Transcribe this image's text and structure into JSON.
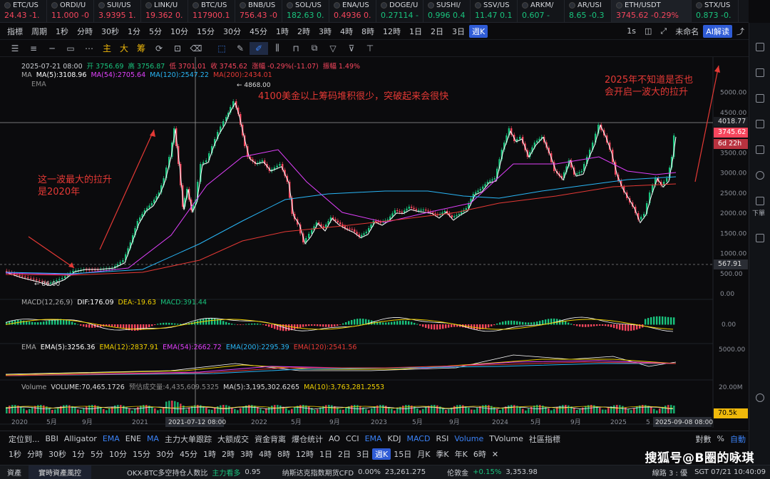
{
  "tickers": [
    {
      "name": "ETC/US",
      "value": "24.43 -1.",
      "dir": "dn"
    },
    {
      "name": "ORDI/U",
      "value": "11.000 -0",
      "dir": "dn"
    },
    {
      "name": "SUI/US",
      "value": "3.9395 1.",
      "dir": "dn"
    },
    {
      "name": "LINK/U",
      "value": "19.362 0.",
      "dir": "dn"
    },
    {
      "name": "BTC/US",
      "value": "117900.1",
      "dir": "dn"
    },
    {
      "name": "BNB/US",
      "value": "756.43 -0",
      "dir": "dn"
    },
    {
      "name": "SOL/US",
      "value": "182.63 0.",
      "dir": "up"
    },
    {
      "name": "ENA/US",
      "value": "0.4936 0.",
      "dir": "dn"
    },
    {
      "name": "DOGE/U",
      "value": "0.27114 -",
      "dir": "up"
    },
    {
      "name": "SUSHI/",
      "value": "0.996 0.4",
      "dir": "up"
    },
    {
      "name": "SSV/US",
      "value": "11.47 0.1",
      "dir": "up"
    },
    {
      "name": "ARKM/",
      "value": "0.607 -",
      "dir": "up"
    },
    {
      "name": "AR/USI",
      "value": "8.65 -0.3",
      "dir": "up"
    },
    {
      "name": "ETH/USDT",
      "value": "3745.62 -0.29%",
      "dir": "dn",
      "active": true
    },
    {
      "name": "STX/US",
      "value": "0.873 -0.",
      "dir": "up"
    }
  ],
  "toolbar1": [
    "指標",
    "周期",
    "1秒",
    "分時",
    "30秒",
    "1分",
    "5分",
    "10分",
    "15分",
    "30分",
    "45分",
    "1時",
    "2時",
    "3時",
    "4時",
    "8時",
    "12時",
    "1日",
    "2日",
    "3日",
    "週K"
  ],
  "toolbar1_selected": "週K",
  "toolbar1_right": {
    "sec": "1s",
    "user": "未命名",
    "ai": "AI解读"
  },
  "toolbar2_chars": [
    "主",
    "大",
    "筹"
  ],
  "info": {
    "ohlc_date": "2025-07-21 08:00",
    "open": "开 3756.69",
    "high": "高 3756.87",
    "low": "低 3701.01",
    "close": "收 3745.62",
    "change": "涨幅 -0.29%(-11.07)",
    "amp": "振幅 1.49%"
  },
  "ma_legend": {
    "label": "MA",
    "ma5": "MA(5):3108.96",
    "ma54": "MA(54):2705.64",
    "ma120": "MA(120):2547.22",
    "ma200": "MA(200):2434.01"
  },
  "ema_label": "EMA",
  "annotations": {
    "a1": "4100美金以上筹码堆积很少，突破起来会很快",
    "a2": "2025年不知道是否也会开启一波大的拉升",
    "a3": "这一波最大的拉升是2020年"
  },
  "price_labels": {
    "high": "4868.00",
    "low": "86.00",
    "crosshair": "4018.77",
    "last": "3745.62",
    "countdown": "6d 22h",
    "cross_y": "567.91"
  },
  "y_ticks": [
    "5000.00",
    "4500.00",
    "4000.00",
    "3500.00",
    "3000.00",
    "2500.00",
    "2000.00",
    "1500.00",
    "1000.00",
    "500.00",
    "0.00"
  ],
  "x_ticks": [
    "2020",
    "5月",
    "9月",
    "2021",
    "5月",
    "9月",
    "2022",
    "5月",
    "9月",
    "2023",
    "5月",
    "9月",
    "2024",
    "5月",
    "9月",
    "2025",
    "5"
  ],
  "x_cross": "2021-07-12 08:00",
  "x_end": "2025-09-08 08:00",
  "macd_legend": {
    "label": "MACD(12,26,9)",
    "dif": "DIF:176.09",
    "dea": "DEA:-19.63",
    "macd": "MACD:391.44"
  },
  "macd_axis": "0.00",
  "ema_legend": {
    "label": "EMA",
    "e5": "EMA(5):3256.36",
    "e12": "EMA(12):2837.91",
    "e54": "EMA(54):2662.72",
    "e200": "EMA(200):2295.39",
    "e120": "EMA(120):2541.56"
  },
  "ema_axis": "5000.00",
  "vol_legend": {
    "label": "Volume",
    "vol": "VOLUME:70,465.1726",
    "est": "预估成交量:4,435,609.5325",
    "ma5": "MA(5):3,195,302.6265",
    "ma10": "MA(10):3,763,281.2553"
  },
  "vol_axis": "20.00M",
  "vol_last": "70.5k",
  "bottom1": [
    "定位到...",
    "BBI",
    "Alligator",
    "EMA",
    "ENE",
    "MA",
    "主力大单跟踪",
    "大额成交",
    "資金背离",
    "爆仓统计",
    "AO",
    "CCI",
    "EMA",
    "KDJ",
    "MACD",
    "RSI",
    "Volume",
    "TVolume",
    "社區指標"
  ],
  "bottom1_right": [
    "對數",
    "%",
    "自動"
  ],
  "bottom2": [
    "1秒",
    "分時",
    "30秒",
    "1分",
    "5分",
    "10分",
    "15分",
    "30分",
    "45分",
    "1時",
    "2時",
    "3時",
    "4時",
    "8時",
    "12時",
    "1日",
    "2日",
    "3日",
    "週K",
    "15日",
    "月K",
    "季K",
    "年K",
    "6時"
  ],
  "bottom2_selected": "週K",
  "status": {
    "left": "資產",
    "btn": "實時資產風控",
    "item1": "OKX-BTC多空持仓人数比",
    "item1_tag": "主力看多",
    "item1_val": "0.95",
    "item2": "纳斯达克指数期货CFD",
    "item2_chg": "0.00%",
    "item2_val": "23,261.275",
    "item3": "伦敦金",
    "item3_chg": "+0.15%",
    "item3_val": "3,353.98",
    "conn": "線路 3 : 優",
    "time": "SGT 07/21 10:40:09"
  },
  "watermark": "搜狐号@B圈的咏琪",
  "sidebar_label": "下單",
  "colors": {
    "up": "#19c37d",
    "down": "#f6465d",
    "ma5": "#ffffff",
    "ma54": "#e040fb",
    "ma120": "#29b6f6",
    "ma200": "#e53935",
    "accent": "#2f5cd6",
    "anno": "#e53935"
  }
}
